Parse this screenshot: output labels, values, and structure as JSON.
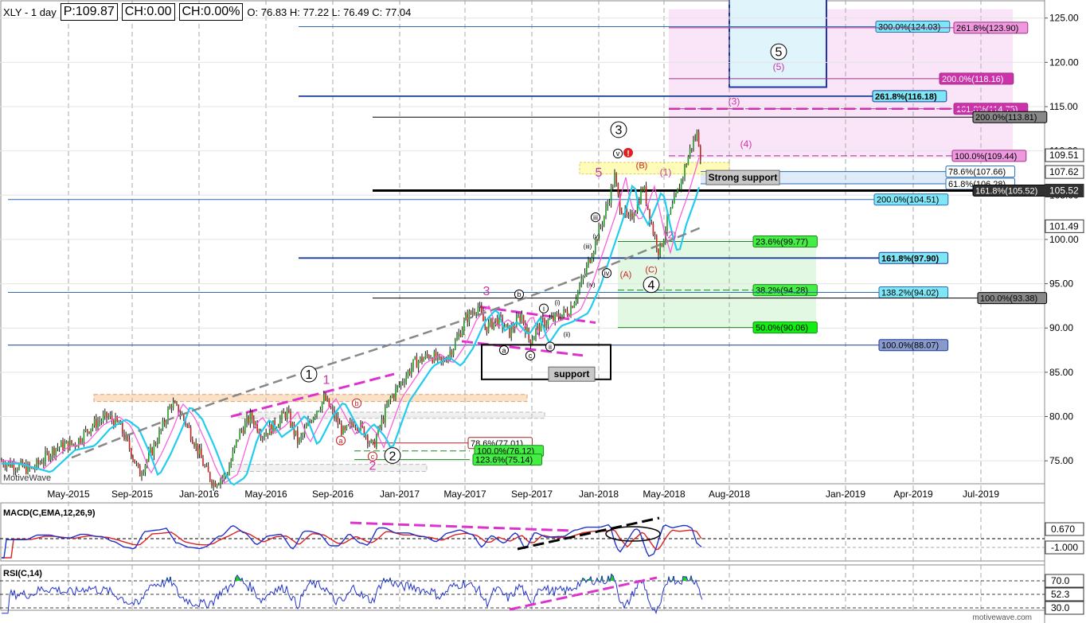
{
  "header": {
    "symbol": "XLY - 1 day",
    "price": "P:109.87",
    "change": "CH:0.00",
    "change_pct": "CH:0.00%",
    "ohlc": "O: 76.83  H: 77.22  L: 76.49  C: 77.04"
  },
  "watermark_left": "MotiveWave",
  "watermark_right": "motivewave.com",
  "chart_data": {
    "type": "candlestick",
    "xaxis": {
      "ticks": [
        [
          "May-2015",
          86
        ],
        [
          "Sep-2015",
          166
        ],
        [
          "Jan-2016",
          250
        ],
        [
          "May-2016",
          334
        ],
        [
          "Sep-2016",
          418
        ],
        [
          "Jan-2017",
          502
        ],
        [
          "May-2017",
          584
        ],
        [
          "Sep-2017",
          668
        ],
        [
          "Jan-2018",
          752
        ],
        [
          "May-2018",
          834
        ],
        [
          "Aug-2018",
          916
        ],
        [
          "Jan-2019",
          1062
        ],
        [
          "Apr-2019",
          1147
        ],
        [
          "Jul-2019",
          1232
        ]
      ]
    },
    "yaxis": {
      "min": 72.5,
      "max": 126.5,
      "ticks": [
        75,
        80,
        85,
        90,
        95,
        100,
        105,
        110,
        115,
        120,
        125
      ]
    },
    "price_path": [
      [
        0,
        75
      ],
      [
        40,
        74
      ],
      [
        70,
        76.5
      ],
      [
        95,
        77
      ],
      [
        115,
        79
      ],
      [
        135,
        80
      ],
      [
        150,
        79
      ],
      [
        165,
        76
      ],
      [
        175,
        73.5
      ],
      [
        190,
        76
      ],
      [
        205,
        79
      ],
      [
        215,
        81.5
      ],
      [
        230,
        80
      ],
      [
        245,
        77
      ],
      [
        258,
        74
      ],
      [
        268,
        72.5
      ],
      [
        285,
        73.5
      ],
      [
        300,
        78
      ],
      [
        315,
        80
      ],
      [
        330,
        78
      ],
      [
        345,
        79
      ],
      [
        360,
        80.5
      ],
      [
        375,
        77
      ],
      [
        395,
        80.5
      ],
      [
        408,
        82
      ],
      [
        420,
        80
      ],
      [
        432,
        78
      ],
      [
        445,
        79.5
      ],
      [
        460,
        78
      ],
      [
        468,
        76.5
      ],
      [
        478,
        79
      ],
      [
        490,
        82
      ],
      [
        505,
        84
      ],
      [
        520,
        86
      ],
      [
        540,
        87
      ],
      [
        555,
        86
      ],
      [
        570,
        88
      ],
      [
        585,
        91
      ],
      [
        600,
        92.5
      ],
      [
        610,
        90
      ],
      [
        625,
        91
      ],
      [
        640,
        89.5
      ],
      [
        655,
        91.5
      ],
      [
        665,
        88.5
      ],
      [
        680,
        90.5
      ],
      [
        695,
        91
      ],
      [
        715,
        92
      ],
      [
        730,
        95
      ],
      [
        745,
        99
      ],
      [
        760,
        103
      ],
      [
        772,
        107
      ],
      [
        778,
        104
      ],
      [
        790,
        102
      ],
      [
        800,
        104
      ],
      [
        808,
        106
      ],
      [
        820,
        101
      ],
      [
        828,
        98.5
      ],
      [
        838,
        102
      ],
      [
        850,
        105
      ],
      [
        860,
        108
      ],
      [
        868,
        110.5
      ],
      [
        876,
        112
      ],
      [
        880,
        109.5
      ]
    ],
    "price_labels": [
      {
        "v": "109.51",
        "y": 109.51,
        "bg": "#ffffff"
      },
      {
        "v": "107.62",
        "y": 107.62,
        "bg": "#ffffff"
      },
      {
        "v": "105.52",
        "y": 105.52,
        "bg": "#303030"
      },
      {
        "v": "101.49",
        "y": 101.49,
        "bg": "#ffffff"
      }
    ],
    "fib_levels": [
      {
        "label": "300.0%(124.03)",
        "y": 124.03,
        "x1": 375,
        "x2": 1188,
        "lx": 1100,
        "fill": "#7fe6f5",
        "stroke": "#2a6db3"
      },
      {
        "label": "261.8%(123.90)",
        "y": 123.9,
        "x1": 840,
        "x2": 1272,
        "lx": 1198,
        "fill": "#ee99dd",
        "stroke": "#a0308a"
      },
      {
        "label": "200.0%(118.16)",
        "y": 118.16,
        "x1": 840,
        "x2": 1272,
        "lx": 1180,
        "fill": "#cc33aa",
        "stroke": "#a0308a"
      },
      {
        "label": "261.8%(116.18)",
        "y": 116.18,
        "x1": 375,
        "x2": 1188,
        "lx": 1096,
        "fill": "#7fe6f5",
        "stroke": "#1a3c9b",
        "bold": true
      },
      {
        "label": "161.8%(114.75)",
        "y": 114.75,
        "x1": 840,
        "x2": 1272,
        "lx": 1198,
        "fill": "#cc33aa",
        "stroke": "#a0308a",
        "dash": true
      },
      {
        "label": "200.0%(113.81)",
        "y": 113.81,
        "x1": 468,
        "x2": 1272,
        "lx": 1222,
        "fill": "#888888",
        "stroke": "#000"
      },
      {
        "label": "100.0%(109.44)",
        "y": 109.44,
        "x1": 840,
        "x2": 1272,
        "lx": 1196,
        "fill": "#ee99dd",
        "stroke": "#a0308a",
        "dash": true
      },
      {
        "label": "78.6%(107.66)",
        "y": 107.66,
        "x1": 880,
        "x2": 1190,
        "lx": 1188,
        "fill": "#ffffff",
        "stroke": "#2a6db3"
      },
      {
        "label": "61.8%(106.28)",
        "y": 106.28,
        "x1": 880,
        "x2": 1190,
        "lx": 1188,
        "fill": "#ffffff",
        "stroke": "#2a6db3"
      },
      {
        "label": "161.8%(105.52)",
        "y": 105.52,
        "x1": 468,
        "x2": 1275,
        "lx": 1222,
        "fill": "#303030",
        "stroke": "#000",
        "thick": true
      },
      {
        "label": "200.0%(104.51)",
        "y": 104.51,
        "x1": 10,
        "x2": 1190,
        "lx": 1098,
        "fill": "#7fe6f5",
        "stroke": "#2a6db3"
      },
      {
        "label": "23.6%(99.77)",
        "y": 99.77,
        "x1": 776,
        "x2": 1025,
        "lx": 946,
        "fill": "#44ee44",
        "stroke": "#1a8a1a"
      },
      {
        "label": "161.8%(97.90)",
        "y": 97.9,
        "x1": 375,
        "x2": 1190,
        "lx": 1104,
        "fill": "#7fe6f5",
        "stroke": "#1a3c9b",
        "bold": true
      },
      {
        "label": "38.2%(94.28)",
        "y": 94.28,
        "x1": 776,
        "x2": 1025,
        "lx": 946,
        "fill": "#44ee44",
        "stroke": "#1a8a1a",
        "dash": true
      },
      {
        "label": "138.2%(94.02)",
        "y": 94.02,
        "x1": 10,
        "x2": 1190,
        "lx": 1104,
        "fill": "#7fe6f5",
        "stroke": "#2a6db3"
      },
      {
        "label": "100.0%(93.38)",
        "y": 93.38,
        "x1": 468,
        "x2": 1275,
        "lx": 1228,
        "fill": "#888888",
        "stroke": "#000"
      },
      {
        "label": "50.0%(90.06)",
        "y": 90.06,
        "x1": 776,
        "x2": 1025,
        "lx": 946,
        "fill": "#11ee11",
        "stroke": "#1a8a1a"
      },
      {
        "label": "100.0%(88.07)",
        "y": 88.07,
        "x1": 10,
        "x2": 1190,
        "lx": 1104,
        "fill": "#8899cc",
        "stroke": "#1a3c9b"
      },
      {
        "label": "78.6%(77.01)",
        "y": 77.01,
        "x1": 468,
        "x2": 590,
        "lx": 588,
        "fill": "#ffffff",
        "stroke": "#aa2222"
      },
      {
        "label": "100.0%(76.12)",
        "y": 76.12,
        "x1": 445,
        "x2": 590,
        "lx": 596,
        "fill": "#44ee44",
        "stroke": "#1a8a1a",
        "dash": true
      },
      {
        "label": "123.6%(75.14)",
        "y": 75.14,
        "x1": 445,
        "x2": 590,
        "lx": 594,
        "fill": "#44ee44",
        "stroke": "#1a8a1a"
      }
    ],
    "annotations": {
      "strong_support": "Strong support",
      "support": "support",
      "waves": [
        {
          "t": "1",
          "x": 388,
          "y": 84.8,
          "circle": true,
          "c": "#000"
        },
        {
          "t": "2",
          "x": 493,
          "y": 75.6,
          "circle": true,
          "c": "#000"
        },
        {
          "t": "3",
          "x": 777,
          "y": 112.4,
          "circle": true,
          "c": "#000"
        },
        {
          "t": "4",
          "x": 818,
          "y": 94.9,
          "circle": true,
          "c": "#000"
        },
        {
          "t": "5",
          "x": 978,
          "y": 121.2,
          "circle": true,
          "c": "#000"
        },
        {
          "t": "1",
          "x": 410,
          "y": 84.2,
          "c": "#cc33aa"
        },
        {
          "t": "2",
          "x": 468,
          "y": 74.5,
          "c": "#cc33aa"
        },
        {
          "t": "3",
          "x": 611,
          "y": 94.2,
          "c": "#cc33aa"
        },
        {
          "t": "4",
          "x": 665,
          "y": 86.8,
          "c": "#cc33aa"
        },
        {
          "t": "5",
          "x": 752,
          "y": 107.6,
          "c": "#cc33aa"
        },
        {
          "t": "(5)",
          "x": 978,
          "y": 119.5,
          "c": "#cc33aa",
          "s": 12
        },
        {
          "t": "(3)",
          "x": 922,
          "y": 115.6,
          "c": "#cc33aa",
          "s": 12
        },
        {
          "t": "(4)",
          "x": 937,
          "y": 110.8,
          "c": "#cc33aa",
          "s": 12
        },
        {
          "t": "(1)",
          "x": 836,
          "y": 107.6,
          "c": "#cc33aa",
          "s": 12
        },
        {
          "t": "(2)",
          "x": 842,
          "y": 100.5,
          "c": "#cc33aa",
          "s": 12
        },
        {
          "t": "(B)",
          "x": 806,
          "y": 108.4,
          "c": "#cc2222",
          "s": 11
        },
        {
          "t": "(A)",
          "x": 786,
          "y": 96.1,
          "c": "#cc2222",
          "s": 11
        },
        {
          "t": "(C)",
          "x": 818,
          "y": 96.6,
          "c": "#cc2222",
          "s": 11
        },
        {
          "t": "v",
          "x": 776,
          "y": 109.7,
          "circle": true,
          "c": "#000",
          "s": 9
        },
        {
          "t": "iii",
          "x": 748,
          "y": 102.5,
          "circle": true,
          "c": "#000",
          "s": 9
        },
        {
          "t": "iv",
          "x": 762,
          "y": 96.2,
          "circle": true,
          "c": "#000",
          "s": 9
        },
        {
          "t": "(v)",
          "x": 749,
          "y": 100.4,
          "c": "#000",
          "s": 8
        },
        {
          "t": "(iii)",
          "x": 738,
          "y": 99.2,
          "c": "#000",
          "s": 8
        },
        {
          "t": "(iv)",
          "x": 742,
          "y": 94.9,
          "c": "#000",
          "s": 8
        },
        {
          "t": "(i)",
          "x": 700,
          "y": 92.9,
          "c": "#000",
          "s": 8
        },
        {
          "t": "(ii)",
          "x": 712,
          "y": 89.3,
          "c": "#000",
          "s": 8
        },
        {
          "t": "b",
          "x": 652,
          "y": 93.8,
          "circle": true,
          "c": "#000",
          "s": 9
        },
        {
          "t": "a",
          "x": 633,
          "y": 87.5,
          "circle": true,
          "c": "#000",
          "s": 9
        },
        {
          "t": "c",
          "x": 666,
          "y": 86.9,
          "circle": true,
          "c": "#000",
          "s": 9
        },
        {
          "t": "i",
          "x": 683,
          "y": 92.2,
          "circle": true,
          "c": "#000",
          "s": 9
        },
        {
          "t": "ii",
          "x": 691,
          "y": 87.9,
          "circle": true,
          "c": "#000",
          "s": 9
        },
        {
          "t": "b",
          "x": 448,
          "y": 81.5,
          "circle": true,
          "c": "#cc2222",
          "s": 9
        },
        {
          "t": "a",
          "x": 428,
          "y": 77.3,
          "circle": true,
          "c": "#cc2222",
          "s": 9
        },
        {
          "t": "c",
          "x": 468,
          "y": 75.5,
          "circle": true,
          "c": "#cc2222",
          "s": 9
        }
      ]
    },
    "indicators": [
      {
        "name": "MACD(C,EMA,12,26,9)",
        "values": [
          "0.670",
          "-1.000"
        ]
      },
      {
        "name": "RSI(C,14)",
        "values": [
          "70.0",
          "52.3",
          "30.0"
        ]
      }
    ]
  }
}
